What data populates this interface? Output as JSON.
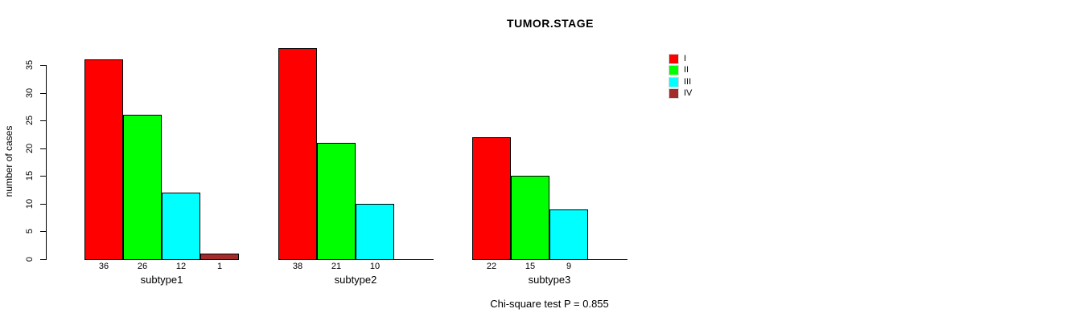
{
  "title": "TUMOR.STAGE",
  "annotation": "Chi-square test P = 0.855",
  "y_axis": {
    "label": "number of cases",
    "ticks": [
      0,
      5,
      10,
      15,
      20,
      25,
      30,
      35
    ]
  },
  "legend": {
    "position": "top-right",
    "items": [
      {
        "label": "I",
        "color": "#ff0000"
      },
      {
        "label": "II",
        "color": "#00ff00"
      },
      {
        "label": "III",
        "color": "#00ffff"
      },
      {
        "label": "IV",
        "color": "#a52a2a"
      }
    ]
  },
  "chart_data": {
    "type": "bar",
    "title": "TUMOR.STAGE",
    "xlabel": "",
    "ylabel": "number of cases",
    "ylim": [
      0,
      35
    ],
    "yticks": [
      0,
      5,
      10,
      15,
      20,
      25,
      30,
      35
    ],
    "grid": false,
    "legend_position": "top-right",
    "categories": [
      "subtype1",
      "subtype2",
      "subtype3"
    ],
    "series": [
      {
        "name": "I",
        "color": "#ff0000",
        "values": [
          36,
          38,
          22
        ]
      },
      {
        "name": "II",
        "color": "#00ff00",
        "values": [
          26,
          21,
          15
        ]
      },
      {
        "name": "III",
        "color": "#00ffff",
        "values": [
          12,
          10,
          9
        ]
      },
      {
        "name": "IV",
        "color": "#a52a2a",
        "values": [
          1,
          0,
          0
        ]
      }
    ],
    "bar_value_labels": [
      [
        "36",
        "26",
        "12",
        "1"
      ],
      [
        "38",
        "21",
        "10",
        ""
      ],
      [
        "22",
        "15",
        "9",
        ""
      ]
    ],
    "annotation": "Chi-square test P = 0.855"
  }
}
